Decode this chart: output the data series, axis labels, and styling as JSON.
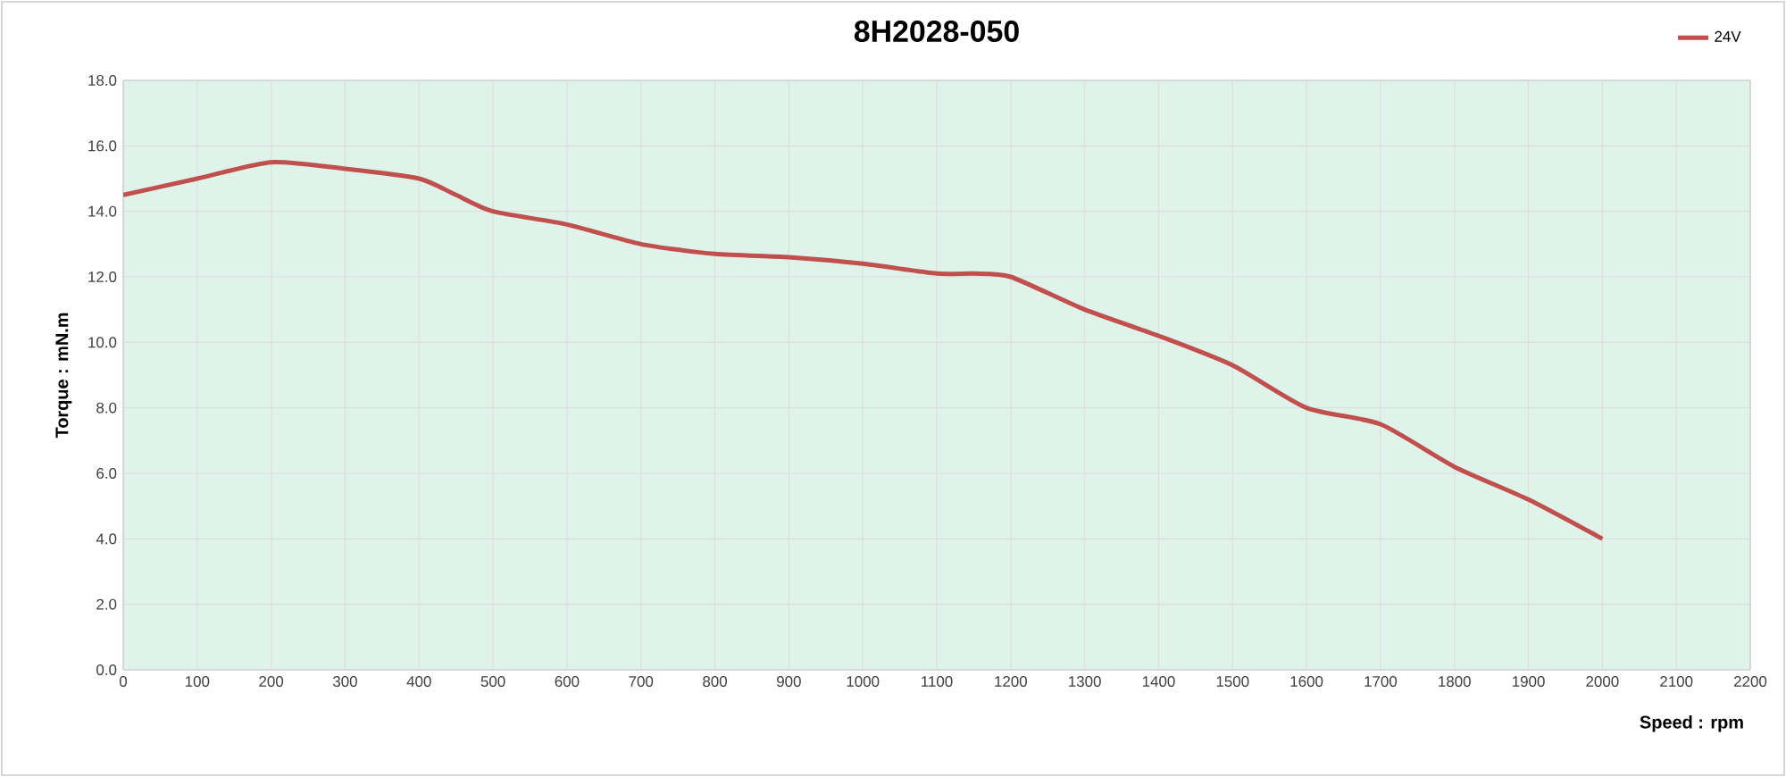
{
  "chart_data": {
    "type": "line",
    "title": "8H2028-050",
    "xlabel": "Speed : rpm",
    "ylabel": "Torque : mN.m",
    "x": [
      0,
      100,
      200,
      300,
      400,
      450,
      500,
      600,
      700,
      800,
      900,
      1000,
      1100,
      1150,
      1200,
      1300,
      1400,
      1500,
      1600,
      1700,
      1800,
      1900,
      2000
    ],
    "series": [
      {
        "name": "24V",
        "color": "#c0504d",
        "values": [
          14.5,
          15.0,
          15.5,
          15.3,
          15.0,
          14.5,
          14.0,
          13.6,
          13.0,
          12.7,
          12.6,
          12.4,
          12.1,
          12.1,
          12.0,
          11.0,
          10.2,
          9.3,
          8.0,
          7.5,
          6.2,
          5.2,
          4.0
        ]
      }
    ],
    "xlim": [
      0,
      2200
    ],
    "xticks": [
      0,
      100,
      200,
      300,
      400,
      500,
      600,
      700,
      800,
      900,
      1000,
      1100,
      1200,
      1300,
      1400,
      1500,
      1600,
      1700,
      1800,
      1900,
      2000,
      2100,
      2200
    ],
    "ylim": [
      0,
      18
    ],
    "yticks": [
      {
        "value": 0,
        "label": "0.0"
      },
      {
        "value": 2,
        "label": "2.0"
      },
      {
        "value": 4,
        "label": "4.0"
      },
      {
        "value": 6,
        "label": "6.0"
      },
      {
        "value": 8,
        "label": "8.0"
      },
      {
        "value": 10,
        "label": "10.0"
      },
      {
        "value": 12,
        "label": "12.0"
      },
      {
        "value": 14,
        "label": "14.0"
      },
      {
        "value": 16,
        "label": "16.0"
      },
      {
        "value": 18,
        "label": "18.0"
      }
    ],
    "grid": true,
    "legend": "top right",
    "marker": "none",
    "line_style": "solid"
  }
}
